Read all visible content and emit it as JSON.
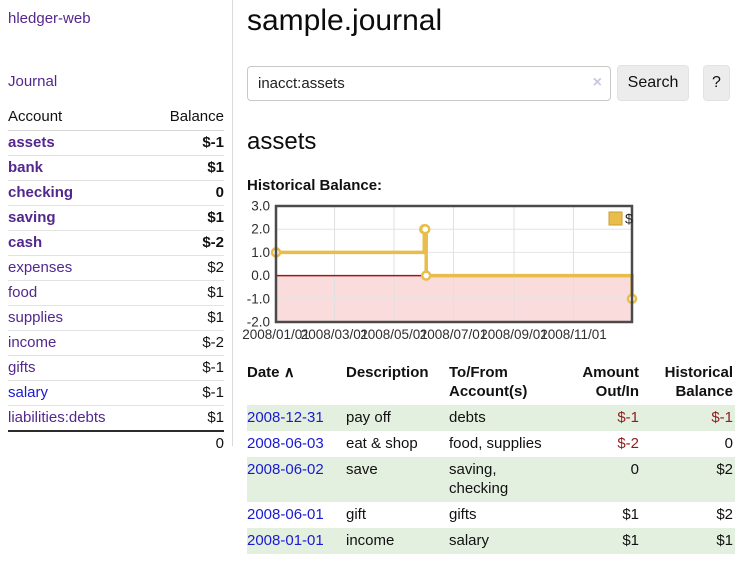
{
  "app": {
    "title": "hledger-web"
  },
  "sidebar": {
    "journal_link": "Journal",
    "accounts_table": {
      "header_account": "Account",
      "header_balance": "Balance",
      "rows": [
        {
          "account": "assets",
          "balance": "$-1",
          "depth": 1,
          "bold": true,
          "balance_class": "neg-strong",
          "link": "purple"
        },
        {
          "account": "bank",
          "balance": "$1",
          "depth": 2,
          "bold": true,
          "balance_class": "",
          "link": "purple"
        },
        {
          "account": "checking",
          "balance": "0",
          "depth": 3,
          "bold": true,
          "balance_class": "",
          "link": "purple"
        },
        {
          "account": "saving",
          "balance": "$1",
          "depth": 3,
          "bold": true,
          "balance_class": "",
          "link": "purple"
        },
        {
          "account": "cash",
          "balance": "$-2",
          "depth": 2,
          "bold": true,
          "balance_class": "neg-strong",
          "link": "purple"
        },
        {
          "account": "expenses",
          "balance": "$2",
          "depth": 1,
          "bold": false,
          "balance_class": "",
          "link": "purple"
        },
        {
          "account": "food",
          "balance": "$1",
          "depth": 2,
          "bold": false,
          "balance_class": "",
          "link": "purple"
        },
        {
          "account": "supplies",
          "balance": "$1",
          "depth": 2,
          "bold": false,
          "balance_class": "",
          "link": "purple"
        },
        {
          "account": "income",
          "balance": "$-2",
          "depth": 1,
          "bold": false,
          "balance_class": "neg-soft",
          "link": "purple"
        },
        {
          "account": "gifts",
          "balance": "$-1",
          "depth": 2,
          "bold": false,
          "balance_class": "neg-soft",
          "link": "purple"
        },
        {
          "account": "salary",
          "balance": "$-1",
          "depth": 2,
          "bold": false,
          "balance_class": "neg-soft",
          "link": "blue"
        },
        {
          "account": "liabilities:debts",
          "balance": "$1",
          "depth": 1,
          "bold": false,
          "balance_class": "",
          "link": "purple"
        }
      ],
      "total": "0"
    }
  },
  "main": {
    "title": "sample.journal",
    "search": {
      "value": "inacct:assets",
      "clear_icon": "×",
      "button_label": "Search",
      "help_label": "?"
    },
    "account_heading": "assets",
    "chart_label": "Historical Balance:"
  },
  "chart_data": {
    "type": "line",
    "step": true,
    "title": "Historical Balance:",
    "series": [
      {
        "name": "$",
        "x": [
          "2008-01-01",
          "2008-06-01",
          "2008-06-02",
          "2008-06-03",
          "2008-12-31"
        ],
        "values": [
          1,
          2,
          2,
          0,
          -1
        ]
      }
    ],
    "x_range": [
      "2008-01-01",
      "2008-12-31"
    ],
    "ylim": [
      -2,
      3
    ],
    "yticks": [
      3.0,
      2.0,
      1.0,
      0.0,
      -1.0,
      -2.0
    ],
    "xticks": [
      "2008/01/01",
      "2008/03/01",
      "2008/05/01",
      "2008/07/01",
      "2008/09/01",
      "2008/11/01"
    ],
    "legend": [
      "$"
    ],
    "legend_position": "top-right",
    "grid": true,
    "line_color": "#e8bd4a",
    "marker": "circle-open",
    "negative_region_fill": "#fbdcdc",
    "zero_line_color": "#a31414",
    "border_color": "#4a4a4a"
  },
  "register": {
    "headers": {
      "date": "Date",
      "sort_icon": "∧",
      "description": "Description",
      "accounts": "To/From Account(s)",
      "amount": "Amount Out/In",
      "balance": "Historical Balance"
    },
    "rows": [
      {
        "date": "2008-12-31",
        "description": "pay off",
        "accounts": "debts",
        "amount": "$-1",
        "amount_neg": true,
        "balance": "$-1",
        "balance_neg": true,
        "shaded": true
      },
      {
        "date": "2008-06-03",
        "description": "eat & shop",
        "accounts": "food, supplies",
        "amount": "$-2",
        "amount_neg": true,
        "balance": "0",
        "balance_neg": false,
        "shaded": false
      },
      {
        "date": "2008-06-02",
        "description": "save",
        "accounts": "saving, checking",
        "amount": "0",
        "amount_neg": false,
        "balance": "$2",
        "balance_neg": false,
        "shaded": true
      },
      {
        "date": "2008-06-01",
        "description": "gift",
        "accounts": "gifts",
        "amount": "$1",
        "amount_neg": false,
        "balance": "$2",
        "balance_neg": false,
        "shaded": false
      },
      {
        "date": "2008-01-01",
        "description": "income",
        "accounts": "salary",
        "amount": "$1",
        "amount_neg": false,
        "balance": "$1",
        "balance_neg": false,
        "shaded": true
      }
    ]
  },
  "colors": {
    "link_purple": "#53278e",
    "link_blue": "#1a1ad1",
    "negative_strong": "#8f1d1d",
    "negative_soft": "#bd7272",
    "row_shade_green": "#e3efdf",
    "chart_gold": "#e8bd4a",
    "chart_pink": "#fbdcdc",
    "zero_line_red": "#a31414",
    "button_gray": "#ececec"
  }
}
